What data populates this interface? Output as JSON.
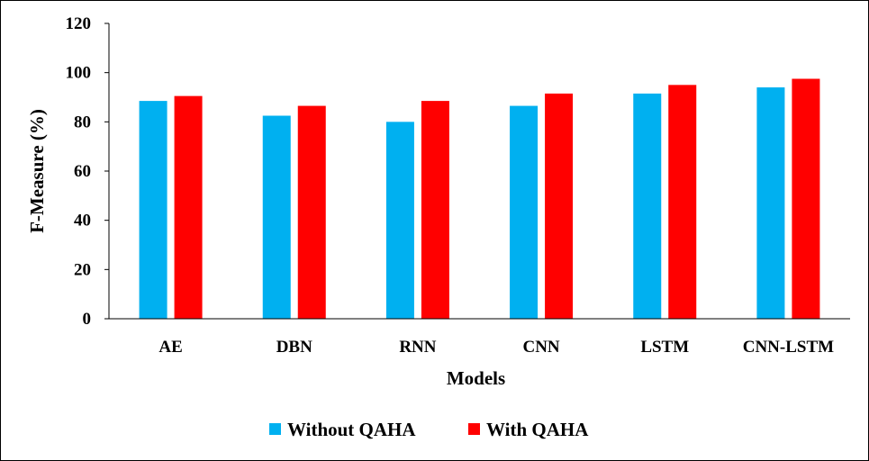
{
  "chart_data": {
    "type": "bar",
    "title": "",
    "xlabel": "Models",
    "ylabel": "F-Measure (%)",
    "ylim": [
      0,
      120
    ],
    "yticks": [
      0,
      20,
      40,
      60,
      80,
      100,
      120
    ],
    "categories": [
      "AE",
      "DBN",
      "RNN",
      "CNN",
      "LSTM",
      "CNN-LSTM"
    ],
    "series": [
      {
        "name": "Without QAHA",
        "color": "#00B0F0",
        "values": [
          88.5,
          82.5,
          80,
          86.5,
          91.5,
          94
        ]
      },
      {
        "name": "With QAHA",
        "color": "#FF0000",
        "values": [
          90.5,
          86.5,
          88.5,
          91.5,
          95,
          97.5
        ]
      }
    ],
    "grid": false,
    "legend_position": "bottom"
  }
}
